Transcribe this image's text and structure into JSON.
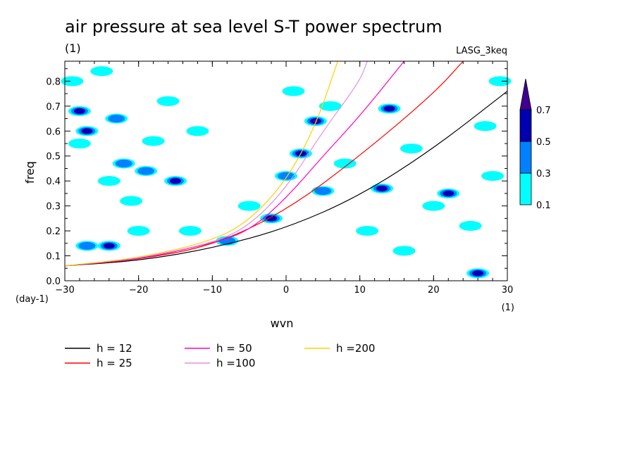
{
  "chart_data": {
    "type": "heatmap",
    "title": "air pressure at sea level S-T power spectrum",
    "title_unit": "(1)",
    "source_label": "LASG_3keq",
    "xlabel": "wvn",
    "x_unit": "(1)",
    "ylabel": "freq",
    "y_unit": "(day-1)",
    "xlim": [
      -30,
      30
    ],
    "ylim": [
      0,
      0.88
    ],
    "x_ticks": [
      -30,
      -20,
      -10,
      0,
      10,
      20,
      30
    ],
    "x_tick_labels": [
      "−30",
      "−20",
      "−10",
      "0",
      "10",
      "20",
      "30"
    ],
    "y_ticks": [
      0.0,
      0.1,
      0.2,
      0.3,
      0.4,
      0.5,
      0.6,
      0.7,
      0.8
    ],
    "y_tick_labels": [
      "0.0",
      "0.1",
      "0.2",
      "0.3",
      "0.4",
      "0.5",
      "0.6",
      "0.7",
      "0.8"
    ],
    "colorbar": {
      "levels": [
        0.1,
        0.3,
        0.5,
        0.7
      ],
      "labels": [
        "0.1",
        "0.3",
        "0.5",
        "0.7"
      ],
      "colors": [
        "#00ffff",
        "#0080ff",
        "#0000b0",
        "#400090"
      ]
    },
    "dispersion_curves": [
      {
        "name": "h = 12",
        "h": 12,
        "color": "#000000",
        "points": [
          [
            -30,
            0.06
          ],
          [
            -20,
            0.08
          ],
          [
            -10,
            0.13
          ],
          [
            0,
            0.21
          ],
          [
            10,
            0.34
          ],
          [
            20,
            0.53
          ],
          [
            30,
            0.76
          ]
        ]
      },
      {
        "name": "h = 25",
        "h": 25,
        "color": "#ff0000",
        "points": [
          [
            -30,
            0.06
          ],
          [
            -20,
            0.085
          ],
          [
            -10,
            0.14
          ],
          [
            0,
            0.28
          ],
          [
            10,
            0.5
          ],
          [
            20,
            0.75
          ],
          [
            24,
            0.88
          ]
        ]
      },
      {
        "name": "h = 50",
        "h": 50,
        "color": "#ff00c0",
        "points": [
          [
            -30,
            0.06
          ],
          [
            -20,
            0.085
          ],
          [
            -10,
            0.15
          ],
          [
            -5,
            0.2
          ],
          [
            0,
            0.33
          ],
          [
            5,
            0.5
          ],
          [
            10,
            0.66
          ],
          [
            16,
            0.88
          ]
        ]
      },
      {
        "name": "h =100",
        "h": 100,
        "color": "#e090e0",
        "points": [
          [
            -30,
            0.06
          ],
          [
            -20,
            0.09
          ],
          [
            -10,
            0.15
          ],
          [
            -5,
            0.22
          ],
          [
            0,
            0.37
          ],
          [
            5,
            0.6
          ],
          [
            10,
            0.8
          ],
          [
            11,
            0.88
          ]
        ]
      },
      {
        "name": "h =200",
        "h": 200,
        "color": "#ffd000",
        "points": [
          [
            -30,
            0.06
          ],
          [
            -20,
            0.09
          ],
          [
            -10,
            0.16
          ],
          [
            -5,
            0.24
          ],
          [
            0,
            0.4
          ],
          [
            4,
            0.62
          ],
          [
            7,
            0.88
          ]
        ]
      }
    ],
    "power_patches": [
      {
        "x": -29,
        "y": 0.8,
        "level": 0.1
      },
      {
        "x": -28,
        "y": 0.68,
        "level": 0.5
      },
      {
        "x": -28,
        "y": 0.55,
        "level": 0.1
      },
      {
        "x": -27,
        "y": 0.6,
        "level": 0.5
      },
      {
        "x": -27,
        "y": 0.14,
        "level": 0.3
      },
      {
        "x": -25,
        "y": 0.84,
        "level": 0.1
      },
      {
        "x": -24,
        "y": 0.4,
        "level": 0.1
      },
      {
        "x": -24,
        "y": 0.14,
        "level": 0.5
      },
      {
        "x": -23,
        "y": 0.65,
        "level": 0.3
      },
      {
        "x": -22,
        "y": 0.47,
        "level": 0.3
      },
      {
        "x": -21,
        "y": 0.32,
        "level": 0.1
      },
      {
        "x": -20,
        "y": 0.2,
        "level": 0.1
      },
      {
        "x": -19,
        "y": 0.44,
        "level": 0.3
      },
      {
        "x": -18,
        "y": 0.56,
        "level": 0.1
      },
      {
        "x": -16,
        "y": 0.72,
        "level": 0.1
      },
      {
        "x": -15,
        "y": 0.4,
        "level": 0.5
      },
      {
        "x": -13,
        "y": 0.2,
        "level": 0.1
      },
      {
        "x": -12,
        "y": 0.6,
        "level": 0.1
      },
      {
        "x": -8,
        "y": 0.16,
        "level": 0.3
      },
      {
        "x": -5,
        "y": 0.3,
        "level": 0.1
      },
      {
        "x": -2,
        "y": 0.25,
        "level": 0.5
      },
      {
        "x": 0,
        "y": 0.42,
        "level": 0.3
      },
      {
        "x": 1,
        "y": 0.76,
        "level": 0.1
      },
      {
        "x": 2,
        "y": 0.51,
        "level": 0.5
      },
      {
        "x": 4,
        "y": 0.64,
        "level": 0.7
      },
      {
        "x": 5,
        "y": 0.36,
        "level": 0.3
      },
      {
        "x": 6,
        "y": 0.7,
        "level": 0.1
      },
      {
        "x": 8,
        "y": 0.47,
        "level": 0.1
      },
      {
        "x": 11,
        "y": 0.2,
        "level": 0.1
      },
      {
        "x": 13,
        "y": 0.37,
        "level": 0.5
      },
      {
        "x": 14,
        "y": 0.69,
        "level": 0.5
      },
      {
        "x": 16,
        "y": 0.12,
        "level": 0.1
      },
      {
        "x": 17,
        "y": 0.53,
        "level": 0.1
      },
      {
        "x": 20,
        "y": 0.3,
        "level": 0.1
      },
      {
        "x": 22,
        "y": 0.35,
        "level": 0.5
      },
      {
        "x": 25,
        "y": 0.22,
        "level": 0.1
      },
      {
        "x": 26,
        "y": 0.03,
        "level": 0.5
      },
      {
        "x": 27,
        "y": 0.62,
        "level": 0.1
      },
      {
        "x": 28,
        "y": 0.42,
        "level": 0.1
      },
      {
        "x": 29,
        "y": 0.8,
        "level": 0.1
      }
    ]
  }
}
